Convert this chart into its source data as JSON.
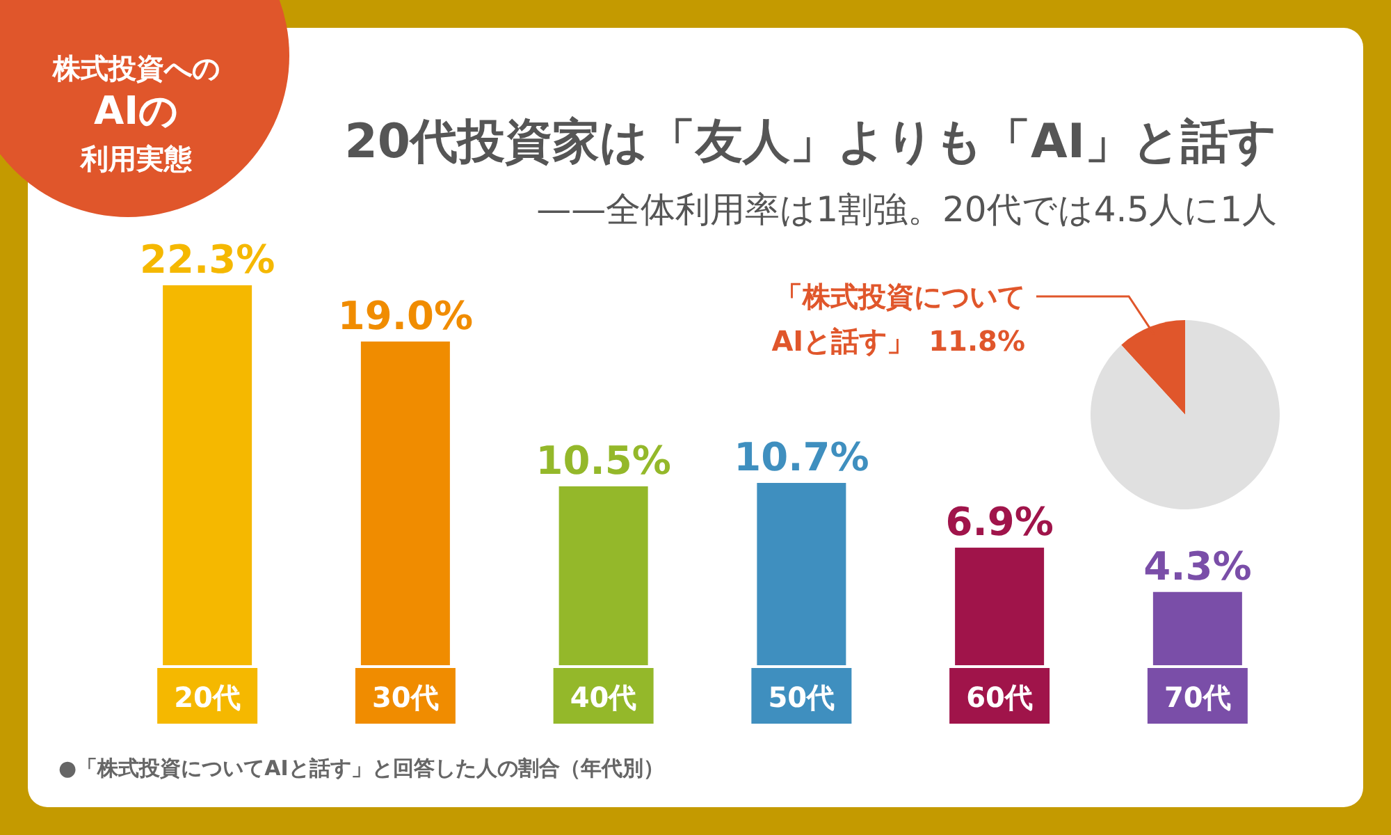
{
  "chart_data": [
    {
      "type": "bar",
      "title": "20代投資家は「友人」よりも「AI」と話す",
      "subtitle": "——全体利用率は1割強。20代では4.5人に1人",
      "categories": [
        "20代",
        "30代",
        "40代",
        "50代",
        "60代",
        "70代"
      ],
      "values": [
        22.3,
        19.0,
        10.5,
        10.7,
        6.9,
        4.3
      ],
      "colors": [
        "#f5b800",
        "#f08c00",
        "#94b82a",
        "#3f8fbf",
        "#a0144a",
        "#7a4ea8"
      ],
      "value_labels": [
        "22.3%",
        "19.0%",
        "10.5%",
        "10.7%",
        "6.9%",
        "4.3%"
      ],
      "annotations": [
        "株式投資への",
        "AIの",
        "利用実態",
        "●「株式投資についてAIと話す」と回答した人の割合（年代別）"
      ]
    },
    {
      "type": "pie",
      "categories": [
        "「株式投資について\nAIと話す」",
        null
      ],
      "values": [
        11.8,
        88.2
      ],
      "colors": [
        "#e0562b",
        "#e0e0e0"
      ],
      "value_labels": [
        "11.8%",
        null
      ]
    }
  ]
}
